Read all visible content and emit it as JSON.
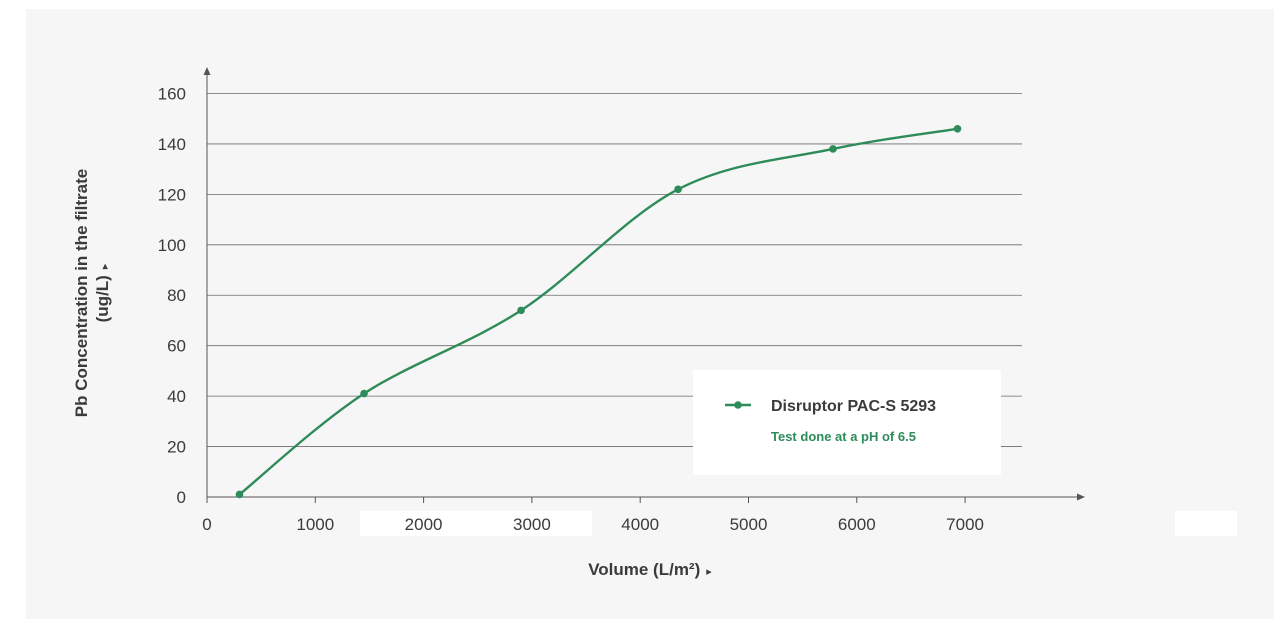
{
  "chart_data": {
    "type": "line",
    "ylabel_line1": "Pb Concentration in the filtrate",
    "ylabel_line2": "(ug/L)",
    "ylabel_arrow": "▸",
    "xlabel": "Volume (L/m²)",
    "xlabel_arrow": "▸",
    "xlim": [
      0,
      7500
    ],
    "ylim": [
      0,
      160
    ],
    "x_ticks": [
      0,
      1000,
      2000,
      3000,
      4000,
      5000,
      6000,
      7000
    ],
    "y_ticks": [
      0,
      20,
      40,
      60,
      80,
      100,
      120,
      140,
      160
    ],
    "grid": true,
    "legend_placement": "bottom-right",
    "series": [
      {
        "name": "Disruptor PAC-S 5293",
        "color": "#2e8b5a",
        "x": [
          300,
          1450,
          2900,
          4350,
          5780,
          6930
        ],
        "y": [
          1,
          41,
          74,
          122,
          138,
          146
        ]
      }
    ],
    "legend_note": "Test done at a pH of 6.5"
  }
}
